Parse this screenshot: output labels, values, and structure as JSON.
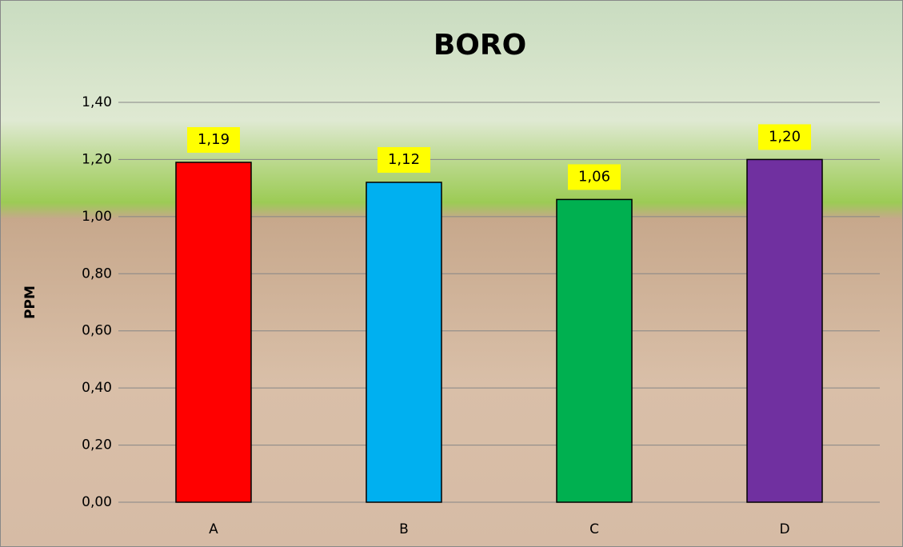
{
  "chart_data": {
    "type": "bar",
    "title": "BORO",
    "y_label": "PPM",
    "categories": [
      "A",
      "B",
      "C",
      "D"
    ],
    "values": [
      1.19,
      1.12,
      1.06,
      1.2
    ],
    "value_labels": [
      "1,19",
      "1,12",
      "1,06",
      "1,20"
    ],
    "colors": [
      "#ff0000",
      "#00b0f0",
      "#00b050",
      "#7030a0"
    ],
    "ylim": [
      0,
      1.4
    ],
    "yticks": [
      {
        "value": 0,
        "label": "0,00"
      },
      {
        "value": 0.2,
        "label": "0,20"
      },
      {
        "value": 0.4,
        "label": "0,40"
      },
      {
        "value": 0.6,
        "label": "0,60"
      },
      {
        "value": 0.8,
        "label": "0,80"
      },
      {
        "value": 1.0,
        "label": "1,00"
      },
      {
        "value": 1.2,
        "label": "1,20"
      },
      {
        "value": 1.4,
        "label": "1,40"
      }
    ],
    "grid": true
  }
}
